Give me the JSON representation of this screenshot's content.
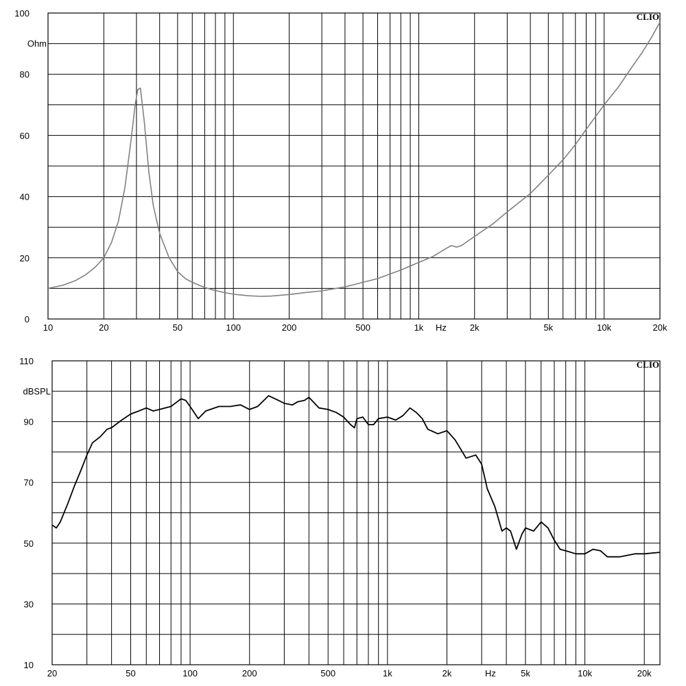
{
  "chart_data": [
    {
      "type": "line",
      "title": "",
      "brand": "CLIO",
      "xlabel": "Hz",
      "ylabel": "Ohm",
      "xscale": "log",
      "xlim": [
        10,
        20000
      ],
      "ylim": [
        0,
        100
      ],
      "grid": true,
      "x_ticks": [
        {
          "value": 10,
          "label": "10"
        },
        {
          "value": 20,
          "label": "20"
        },
        {
          "value": 50,
          "label": "50"
        },
        {
          "value": 100,
          "label": "100"
        },
        {
          "value": 200,
          "label": "200"
        },
        {
          "value": 500,
          "label": "500"
        },
        {
          "value": 1000,
          "label": "1k"
        },
        {
          "value": 2000,
          "label": "2k"
        },
        {
          "value": 5000,
          "label": "5k"
        },
        {
          "value": 10000,
          "label": "10k"
        },
        {
          "value": 20000,
          "label": "20k"
        }
      ],
      "y_ticks": [
        {
          "value": 0,
          "label": "0"
        },
        {
          "value": 20,
          "label": "20"
        },
        {
          "value": 40,
          "label": "40"
        },
        {
          "value": 60,
          "label": "60"
        },
        {
          "value": 80,
          "label": "80"
        },
        {
          "value": 100,
          "label": "100"
        }
      ],
      "series": [
        {
          "color": "#808080",
          "x": [
            10,
            12,
            14,
            16,
            18,
            20,
            22,
            24,
            26,
            28,
            29.5,
            30.5,
            31.5,
            33,
            35,
            37,
            40,
            45,
            50,
            55,
            60,
            70,
            80,
            90,
            100,
            120,
            140,
            160,
            200,
            250,
            300,
            400,
            500,
            600,
            800,
            1000,
            1200,
            1400,
            1500,
            1600,
            1700,
            2000,
            2500,
            3000,
            4000,
            5000,
            6000,
            7000,
            8000,
            10000,
            12000,
            14000,
            16000,
            18000,
            20000
          ],
          "values": [
            10,
            11,
            12.5,
            14.5,
            17,
            20,
            25,
            32,
            43,
            58,
            70,
            75,
            75.5,
            65,
            48,
            37,
            28,
            20,
            15.5,
            13.2,
            12,
            10.3,
            9.3,
            8.6,
            8.1,
            7.6,
            7.4,
            7.5,
            8.0,
            8.7,
            9.2,
            10.5,
            12.0,
            13.2,
            16.0,
            18.5,
            20.5,
            23.0,
            24.0,
            23.5,
            24.0,
            27.0,
            31.0,
            35.0,
            41.0,
            47.0,
            52.0,
            57.0,
            62.0,
            70.0,
            76.0,
            82.0,
            87.0,
            92.0,
            97.0
          ]
        }
      ]
    },
    {
      "type": "line",
      "title": "",
      "brand": "CLIO",
      "xlabel": "Hz",
      "ylabel": "dBSPL",
      "xscale": "log",
      "xlim": [
        20,
        24000
      ],
      "ylim": [
        10,
        110
      ],
      "grid": true,
      "x_ticks": [
        {
          "value": 20,
          "label": "20"
        },
        {
          "value": 50,
          "label": "50"
        },
        {
          "value": 100,
          "label": "100"
        },
        {
          "value": 200,
          "label": "200"
        },
        {
          "value": 500,
          "label": "500"
        },
        {
          "value": 1000,
          "label": "1k"
        },
        {
          "value": 2000,
          "label": "2k"
        },
        {
          "value": 5000,
          "label": "5k"
        },
        {
          "value": 10000,
          "label": "10k"
        },
        {
          "value": 20000,
          "label": "20k"
        }
      ],
      "y_ticks": [
        {
          "value": 10,
          "label": "10"
        },
        {
          "value": 30,
          "label": "30"
        },
        {
          "value": 50,
          "label": "50"
        },
        {
          "value": 70,
          "label": "70"
        },
        {
          "value": 90,
          "label": "90"
        },
        {
          "value": 110,
          "label": "110"
        }
      ],
      "series": [
        {
          "color": "#000000",
          "x": [
            20,
            21,
            22,
            24,
            26,
            28,
            30,
            32,
            35,
            38,
            40,
            45,
            50,
            55,
            60,
            65,
            70,
            80,
            90,
            95,
            100,
            110,
            120,
            140,
            160,
            180,
            200,
            220,
            250,
            280,
            300,
            330,
            350,
            380,
            400,
            450,
            500,
            550,
            600,
            650,
            680,
            700,
            750,
            800,
            850,
            900,
            1000,
            1100,
            1200,
            1300,
            1400,
            1500,
            1600,
            1800,
            2000,
            2200,
            2500,
            2800,
            3000,
            3200,
            3500,
            3800,
            4000,
            4200,
            4500,
            4800,
            5000,
            5500,
            6000,
            6500,
            7000,
            7500,
            8000,
            9000,
            10000,
            11000,
            12000,
            13000,
            15000,
            18000,
            20000,
            24000
          ],
          "values": [
            56,
            55,
            57,
            63,
            69,
            74,
            79,
            83,
            85,
            87.5,
            88,
            90.5,
            92.5,
            93.5,
            94.5,
            93.5,
            94,
            95,
            97.5,
            97,
            95,
            91,
            93.5,
            95,
            95,
            95.5,
            94,
            95,
            98.5,
            97,
            96,
            95.5,
            96.5,
            97,
            98,
            94.5,
            94,
            93,
            91.5,
            89,
            88,
            91,
            91.5,
            89,
            89,
            91,
            91.5,
            90.5,
            92,
            94.5,
            93,
            91,
            87.5,
            86,
            87,
            84,
            78,
            79,
            76,
            68,
            62,
            54,
            55,
            54,
            48,
            53,
            55,
            54,
            57,
            55,
            51,
            48,
            47.5,
            46.5,
            46.5,
            48,
            47.5,
            45.5,
            45.5,
            46.5,
            46.5,
            47
          ]
        }
      ]
    }
  ]
}
